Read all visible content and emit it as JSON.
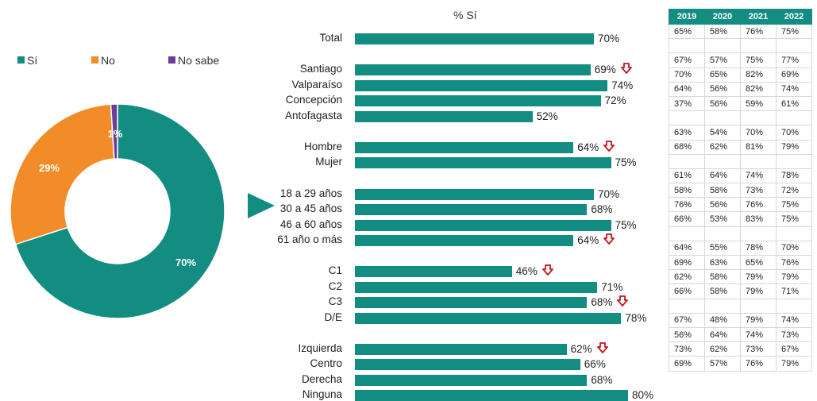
{
  "donut": {
    "legend": [
      {
        "label": "Sí",
        "color": "#138d81"
      },
      {
        "label": "No",
        "color": "#f28c28"
      },
      {
        "label": "No sabe",
        "color": "#6a3d9a"
      }
    ],
    "labels": {
      "si": "70%",
      "no": "29%",
      "nosabe": "1%"
    }
  },
  "bars_title": "% Sí",
  "table": {
    "years": [
      "2019",
      "2020",
      "2021",
      "2022"
    ]
  },
  "chart_data": [
    {
      "type": "pie",
      "categories": [
        "Sí",
        "No",
        "No sabe"
      ],
      "values": [
        70,
        29,
        1
      ],
      "colors": [
        "#138d81",
        "#f28c28",
        "#6a3d9a"
      ],
      "legend": "top"
    },
    {
      "type": "bar",
      "title": "% Sí",
      "orientation": "horizontal",
      "unit": "%",
      "rows": [
        {
          "label": "Total",
          "value": 70,
          "text": "70%",
          "down": false,
          "group": 0
        },
        {
          "label": "Santiago",
          "value": 69,
          "text": "69%",
          "down": true,
          "group": 1
        },
        {
          "label": "Valparaíso",
          "value": 74,
          "text": "74%",
          "down": false,
          "group": 1
        },
        {
          "label": "Concepción",
          "value": 72,
          "text": "72%",
          "down": false,
          "group": 1
        },
        {
          "label": "Antofagasta",
          "value": 52,
          "text": "52%",
          "down": false,
          "group": 1
        },
        {
          "label": "Hombre",
          "value": 64,
          "text": "64%",
          "down": true,
          "group": 2
        },
        {
          "label": "Mujer",
          "value": 75,
          "text": "75%",
          "down": false,
          "group": 2
        },
        {
          "label": "18 a 29 años",
          "value": 70,
          "text": "70%",
          "down": false,
          "group": 3
        },
        {
          "label": "30 a 45 años",
          "value": 68,
          "text": "68%",
          "down": false,
          "group": 3
        },
        {
          "label": "46 a 60 años",
          "value": 75,
          "text": "75%",
          "down": false,
          "group": 3
        },
        {
          "label": "61 año o más",
          "value": 64,
          "text": "64%",
          "down": true,
          "group": 3
        },
        {
          "label": "C1",
          "value": 46,
          "text": "46%",
          "down": true,
          "group": 4
        },
        {
          "label": "C2",
          "value": 71,
          "text": "71%",
          "down": false,
          "group": 4
        },
        {
          "label": "C3",
          "value": 68,
          "text": "68%",
          "down": true,
          "group": 4
        },
        {
          "label": "D/E",
          "value": 78,
          "text": "78%",
          "down": false,
          "group": 4
        },
        {
          "label": "Izquierda",
          "value": 62,
          "text": "62%",
          "down": true,
          "group": 5
        },
        {
          "label": "Centro",
          "value": 66,
          "text": "66%",
          "down": false,
          "group": 5
        },
        {
          "label": "Derecha",
          "value": 68,
          "text": "68%",
          "down": false,
          "group": 5
        },
        {
          "label": "Ninguna",
          "value": 80,
          "text": "80%",
          "down": false,
          "group": 5
        }
      ]
    },
    {
      "type": "table",
      "columns": [
        "2019",
        "2020",
        "2021",
        "2022"
      ],
      "groups": [
        [
          [
            "65%",
            "58%",
            "76%",
            "75%"
          ]
        ],
        [
          [
            "67%",
            "57%",
            "75%",
            "77%"
          ],
          [
            "70%",
            "65%",
            "82%",
            "69%"
          ],
          [
            "64%",
            "56%",
            "82%",
            "74%"
          ],
          [
            "37%",
            "56%",
            "59%",
            "61%"
          ]
        ],
        [
          [
            "63%",
            "54%",
            "70%",
            "70%"
          ],
          [
            "68%",
            "62%",
            "81%",
            "79%"
          ]
        ],
        [
          [
            "61%",
            "64%",
            "74%",
            "78%"
          ],
          [
            "58%",
            "58%",
            "73%",
            "72%"
          ],
          [
            "76%",
            "56%",
            "76%",
            "75%"
          ],
          [
            "66%",
            "53%",
            "83%",
            "75%"
          ]
        ],
        [
          [
            "64%",
            "55%",
            "78%",
            "70%"
          ],
          [
            "69%",
            "63%",
            "65%",
            "76%"
          ],
          [
            "62%",
            "58%",
            "79%",
            "79%"
          ],
          [
            "66%",
            "58%",
            "79%",
            "71%"
          ]
        ],
        [
          [
            "67%",
            "48%",
            "79%",
            "74%"
          ],
          [
            "56%",
            "64%",
            "74%",
            "73%"
          ],
          [
            "73%",
            "62%",
            "73%",
            "67%"
          ],
          [
            "69%",
            "57%",
            "76%",
            "79%"
          ]
        ]
      ]
    }
  ]
}
